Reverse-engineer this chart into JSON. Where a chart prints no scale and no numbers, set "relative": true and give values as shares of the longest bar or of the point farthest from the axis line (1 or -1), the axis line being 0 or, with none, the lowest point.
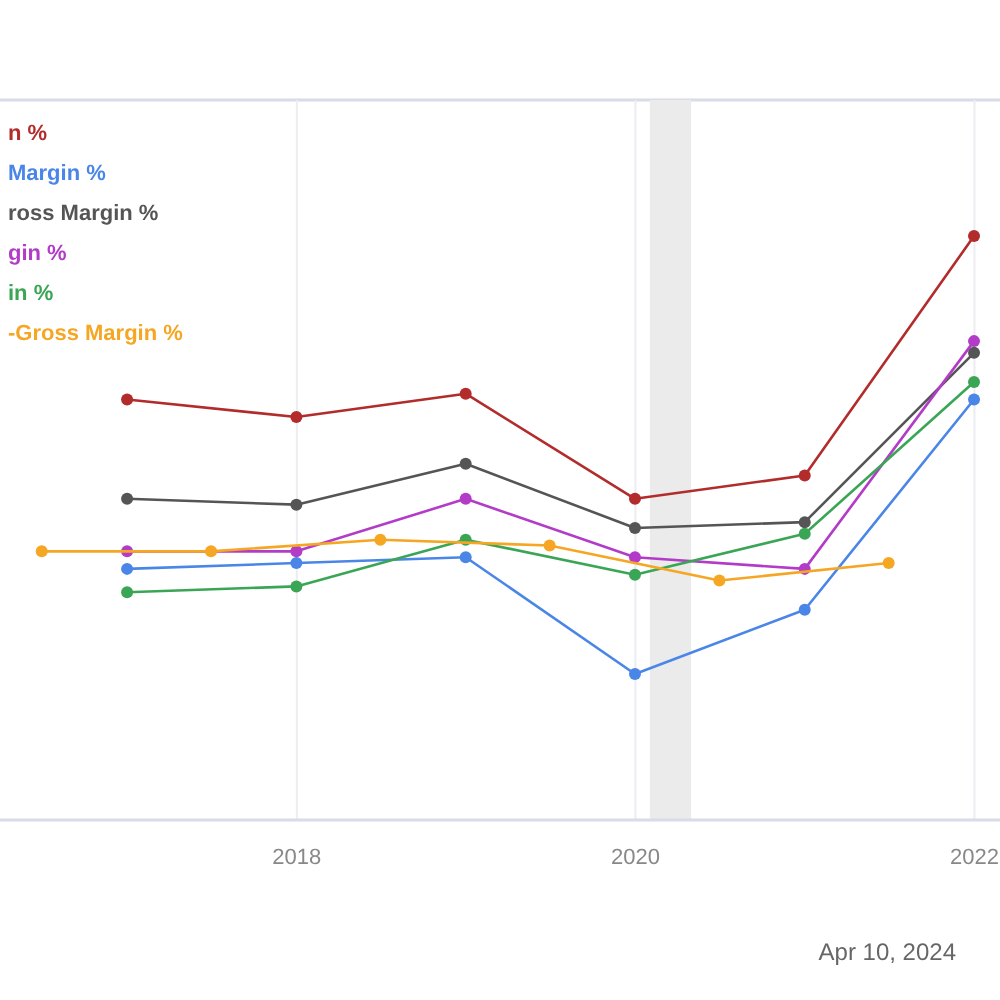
{
  "chart_data": {
    "type": "line",
    "relative": true,
    "marker": "circle",
    "legend": "top left",
    "grid": "x",
    "x": [
      "2016-12-31",
      "2017-12-31",
      "2018-12-31",
      "2019-12-31",
      "2020-12-31",
      "2021-12-31"
    ],
    "xlim": [
      "2016-04-01",
      "2022-02-25"
    ],
    "xticks": [
      {
        "value": "2018-01-01",
        "label": "2018"
      },
      {
        "value": "2020-01-01",
        "label": "2020"
      },
      {
        "value": "2022-01-01",
        "label": "2022"
      }
    ],
    "bands": [
      {
        "axis": "x",
        "from": "2020-02-01",
        "to": "2020-04-30",
        "color": "#ebebeb"
      }
    ],
    "series": [
      {
        "name": "n %",
        "color": "#b22c2c",
        "values": [
          0.72,
          0.69,
          0.73,
          0.55,
          0.59,
          1
        ]
      },
      {
        "name": "Margin %",
        "color": "#4a86e8",
        "values": [
          0.43,
          0.44,
          0.45,
          0.25,
          0.36,
          0.72
        ]
      },
      {
        "name": "ross Margin %",
        "color": "#555555",
        "values": [
          0.55,
          0.54,
          0.61,
          0.5,
          0.51,
          0.8
        ]
      },
      {
        "name": "gin %",
        "color": "#b23cc8",
        "values": [
          0.46,
          0.46,
          0.55,
          0.45,
          0.43,
          0.82
        ]
      },
      {
        "name": "in %",
        "color": "#3aa655",
        "values": [
          0.39,
          0.4,
          0.48,
          0.42,
          0.49,
          0.75
        ]
      },
      {
        "name": "-Gross Margin %",
        "color": "#f5a623",
        "x": [
          "2016-06-30",
          "2017-06-30",
          "2018-06-30",
          "2019-06-30",
          "2020-06-30",
          "2021-06-30"
        ],
        "values": [
          0.46,
          0.46,
          0.48,
          0.47,
          0.41,
          0.44
        ]
      }
    ],
    "annotations": [
      "Apr 10, 2024"
    ]
  }
}
